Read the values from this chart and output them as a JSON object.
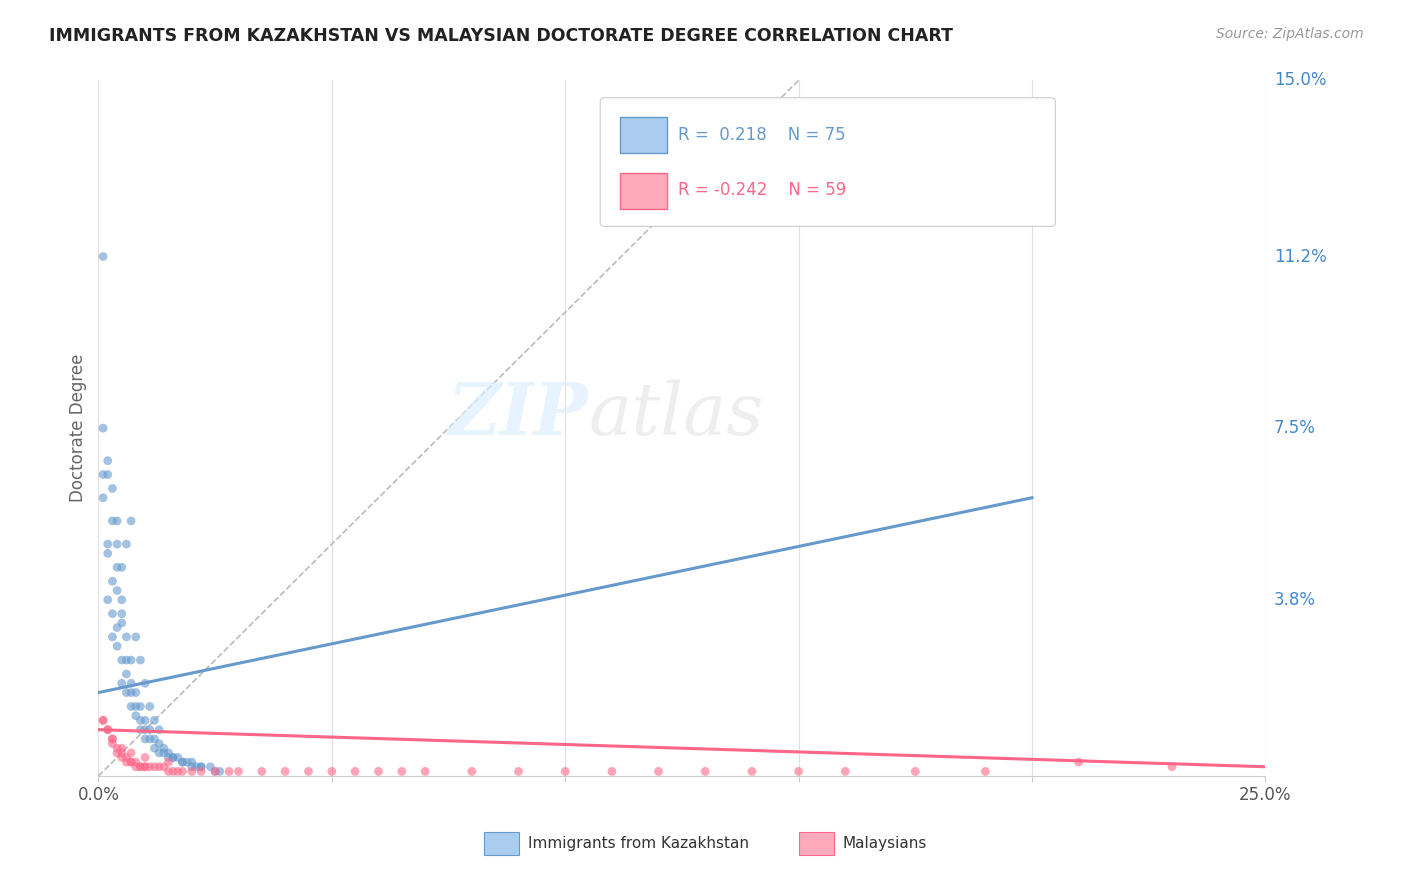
{
  "title": "IMMIGRANTS FROM KAZAKHSTAN VS MALAYSIAN DOCTORATE DEGREE CORRELATION CHART",
  "source": "Source: ZipAtlas.com",
  "ylabel": "Doctorate Degree",
  "x_min": 0.0,
  "x_max": 0.25,
  "y_min": 0.0,
  "y_max": 0.15,
  "x_tick_positions": [
    0.0,
    0.05,
    0.1,
    0.15,
    0.2,
    0.25
  ],
  "x_tick_labels": [
    "0.0%",
    "",
    "",
    "",
    "",
    "25.0%"
  ],
  "y_tick_labels_right": [
    "3.8%",
    "7.5%",
    "11.2%",
    "15.0%"
  ],
  "y_tick_values_right": [
    0.038,
    0.075,
    0.112,
    0.15
  ],
  "legend_entries": [
    {
      "label": "Immigrants from Kazakhstan",
      "R": "0.218",
      "N": "75",
      "color": "#6699cc"
    },
    {
      "label": "Malaysians",
      "R": "-0.242",
      "N": "59",
      "color": "#ff6688"
    }
  ],
  "blue_scatter_x": [
    0.001,
    0.001,
    0.002,
    0.002,
    0.002,
    0.003,
    0.003,
    0.003,
    0.003,
    0.004,
    0.004,
    0.004,
    0.004,
    0.004,
    0.005,
    0.005,
    0.005,
    0.005,
    0.005,
    0.006,
    0.006,
    0.006,
    0.006,
    0.007,
    0.007,
    0.007,
    0.007,
    0.008,
    0.008,
    0.008,
    0.009,
    0.009,
    0.009,
    0.01,
    0.01,
    0.01,
    0.011,
    0.011,
    0.012,
    0.012,
    0.013,
    0.013,
    0.014,
    0.014,
    0.015,
    0.015,
    0.016,
    0.016,
    0.017,
    0.018,
    0.018,
    0.019,
    0.02,
    0.02,
    0.021,
    0.022,
    0.022,
    0.024,
    0.025,
    0.026,
    0.001,
    0.001,
    0.002,
    0.002,
    0.003,
    0.004,
    0.005,
    0.006,
    0.007,
    0.008,
    0.009,
    0.01,
    0.011,
    0.012,
    0.013
  ],
  "blue_scatter_y": [
    0.06,
    0.075,
    0.065,
    0.048,
    0.038,
    0.055,
    0.042,
    0.035,
    0.03,
    0.05,
    0.045,
    0.04,
    0.032,
    0.028,
    0.038,
    0.035,
    0.033,
    0.025,
    0.02,
    0.03,
    0.025,
    0.022,
    0.018,
    0.025,
    0.02,
    0.018,
    0.015,
    0.018,
    0.015,
    0.013,
    0.015,
    0.012,
    0.01,
    0.012,
    0.01,
    0.008,
    0.01,
    0.008,
    0.008,
    0.006,
    0.007,
    0.005,
    0.006,
    0.005,
    0.005,
    0.004,
    0.004,
    0.004,
    0.004,
    0.003,
    0.003,
    0.003,
    0.003,
    0.002,
    0.002,
    0.002,
    0.002,
    0.002,
    0.001,
    0.001,
    0.112,
    0.065,
    0.068,
    0.05,
    0.062,
    0.055,
    0.045,
    0.05,
    0.055,
    0.03,
    0.025,
    0.02,
    0.015,
    0.012,
    0.01
  ],
  "pink_scatter_x": [
    0.001,
    0.002,
    0.003,
    0.003,
    0.004,
    0.004,
    0.005,
    0.005,
    0.006,
    0.006,
    0.007,
    0.007,
    0.008,
    0.008,
    0.009,
    0.009,
    0.01,
    0.01,
    0.011,
    0.012,
    0.013,
    0.014,
    0.015,
    0.016,
    0.017,
    0.018,
    0.02,
    0.022,
    0.025,
    0.028,
    0.03,
    0.035,
    0.04,
    0.045,
    0.05,
    0.055,
    0.06,
    0.065,
    0.07,
    0.08,
    0.09,
    0.1,
    0.11,
    0.12,
    0.13,
    0.14,
    0.15,
    0.16,
    0.175,
    0.19,
    0.21,
    0.23,
    0.001,
    0.002,
    0.003,
    0.005,
    0.007,
    0.01,
    0.015
  ],
  "pink_scatter_y": [
    0.012,
    0.01,
    0.008,
    0.007,
    0.006,
    0.005,
    0.005,
    0.004,
    0.004,
    0.003,
    0.003,
    0.003,
    0.003,
    0.002,
    0.002,
    0.002,
    0.002,
    0.002,
    0.002,
    0.002,
    0.002,
    0.002,
    0.001,
    0.001,
    0.001,
    0.001,
    0.001,
    0.001,
    0.001,
    0.001,
    0.001,
    0.001,
    0.001,
    0.001,
    0.001,
    0.001,
    0.001,
    0.001,
    0.001,
    0.001,
    0.001,
    0.001,
    0.001,
    0.001,
    0.001,
    0.001,
    0.001,
    0.001,
    0.001,
    0.001,
    0.003,
    0.002,
    0.012,
    0.01,
    0.008,
    0.006,
    0.005,
    0.004,
    0.003
  ],
  "blue_line_x": [
    0.0,
    0.2
  ],
  "blue_line_y": [
    0.018,
    0.06
  ],
  "pink_line_x": [
    0.0,
    0.25
  ],
  "pink_line_y": [
    0.01,
    0.002
  ],
  "watermark_zip": "ZIP",
  "watermark_atlas": "atlas",
  "blue_color": "#6699cc",
  "pink_color": "#ff6688",
  "blue_fill": "#aaccee",
  "pink_fill": "#ffaabb",
  "diagonal_color": "#bbbbbb",
  "grid_color": "#e0e0e0",
  "title_color": "#222222",
  "right_label_color": "#4488cc"
}
